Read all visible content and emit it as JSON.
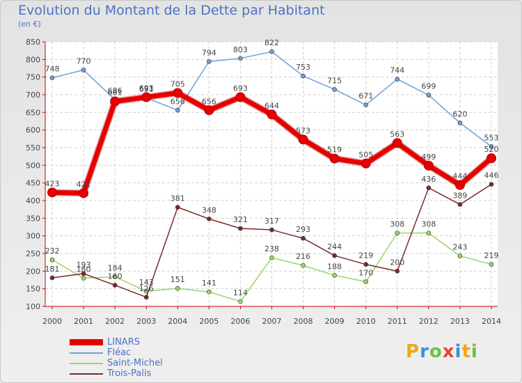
{
  "title": "Evolution du Montant de la Dette par Habitant",
  "subtitle": "(en €)",
  "logo": {
    "text": "Proxiti",
    "colors": [
      "#f2a51a",
      "#3a8fd6",
      "#6cc04a",
      "#e8452c",
      "#3a8fd6",
      "#f2a51a",
      "#6cc04a"
    ]
  },
  "chart_data": {
    "type": "line",
    "x": [
      "2000",
      "2001",
      "2002",
      "2003",
      "2004",
      "2005",
      "2006",
      "2007",
      "2008",
      "2009",
      "2010",
      "2011",
      "2012",
      "2013",
      "2014"
    ],
    "yticks": [
      100,
      150,
      200,
      250,
      300,
      350,
      400,
      450,
      500,
      550,
      600,
      650,
      700,
      750,
      800,
      850
    ],
    "ylim": [
      100,
      850
    ],
    "grid": true,
    "legend_position": "bottom-left",
    "series": [
      {
        "name": "Fléac",
        "color": "#6f9fd4",
        "values": [
          748,
          770,
          686,
          691,
          656,
          794,
          803,
          822,
          753,
          715,
          671,
          744,
          699,
          620,
          553
        ]
      },
      {
        "name": "Saint-Michel",
        "color": "#9ad46a",
        "values": [
          232,
          180,
          184,
          143,
          151,
          141,
          114,
          238,
          216,
          188,
          170,
          308,
          308,
          243,
          219
        ]
      },
      {
        "name": "Trois-Palis",
        "color": "#7a2a2a",
        "values": [
          181,
          193,
          160,
          126,
          381,
          348,
          321,
          317,
          293,
          244,
          219,
          200,
          436,
          389,
          446
        ]
      },
      {
        "name": "LINARS",
        "color": "#e60000",
        "values": [
          423,
          421,
          681,
          693,
          705,
          656,
          693,
          644,
          573,
          519,
          505,
          563,
          499,
          444,
          520
        ]
      }
    ],
    "legend_order": [
      "LINARS",
      "Fléac",
      "Saint-Michel",
      "Trois-Palis"
    ]
  }
}
